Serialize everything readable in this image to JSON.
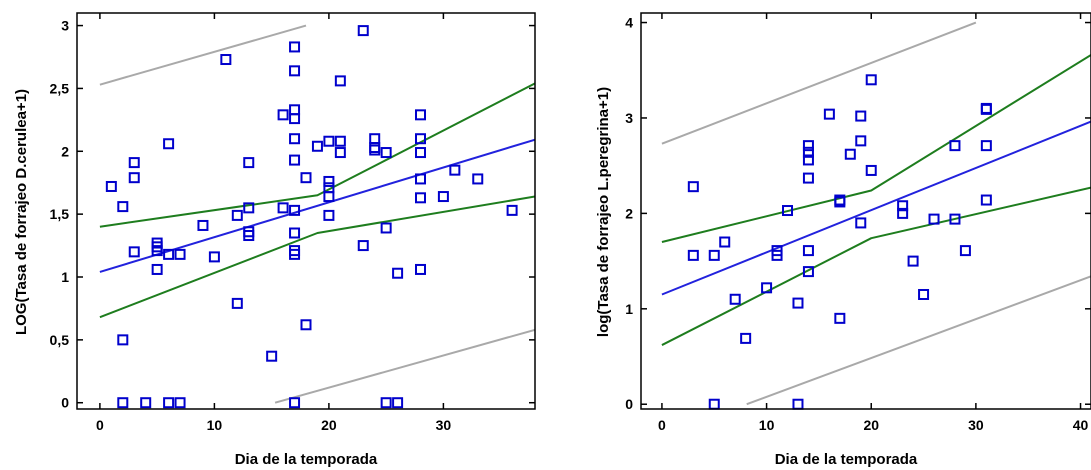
{
  "colors": {
    "points": "#0000cc",
    "fit": "#2222dd",
    "confidence": "#1e7d1e",
    "prediction": "#a9a9a9",
    "axis": "#000000"
  },
  "chart_data": [
    {
      "type": "scatter",
      "xlabel": "Dia de la temporada",
      "ylabel": "LOG(Tasa de forrajeo D.cerulea+1)",
      "xlim": [
        -2,
        38
      ],
      "ylim": [
        -0.05,
        3.1
      ],
      "xticks": [
        0,
        10,
        20,
        30
      ],
      "xtick_labels": [
        "0",
        "10",
        "20",
        "30"
      ],
      "yticks": [
        0,
        0.5,
        1,
        1.5,
        2,
        2.5,
        3
      ],
      "ytick_labels": [
        "0",
        "0,5",
        "1",
        "1,5",
        "2",
        "2,5",
        "3"
      ],
      "grid": false,
      "legend": "none",
      "points": [
        [
          1,
          1.72
        ],
        [
          2,
          1.56
        ],
        [
          2,
          0.5
        ],
        [
          2,
          0.0
        ],
        [
          3,
          1.91
        ],
        [
          3,
          1.79
        ],
        [
          3,
          1.2
        ],
        [
          4,
          0.0
        ],
        [
          5,
          1.27
        ],
        [
          5,
          1.24
        ],
        [
          5,
          1.21
        ],
        [
          5,
          1.06
        ],
        [
          6,
          2.06
        ],
        [
          6,
          1.18
        ],
        [
          6,
          0.0
        ],
        [
          7,
          1.18
        ],
        [
          7,
          0.0
        ],
        [
          9,
          1.41
        ],
        [
          10,
          1.16
        ],
        [
          11,
          2.73
        ],
        [
          12,
          1.49
        ],
        [
          12,
          0.79
        ],
        [
          13,
          1.91
        ],
        [
          13,
          1.55
        ],
        [
          13,
          1.36
        ],
        [
          13,
          1.33
        ],
        [
          15,
          0.37
        ],
        [
          16,
          2.29
        ],
        [
          16,
          1.55
        ],
        [
          17,
          2.83
        ],
        [
          17,
          2.64
        ],
        [
          17,
          2.33
        ],
        [
          17,
          2.26
        ],
        [
          17,
          2.1
        ],
        [
          17,
          1.93
        ],
        [
          17,
          1.53
        ],
        [
          17,
          1.35
        ],
        [
          17,
          1.21
        ],
        [
          17,
          1.18
        ],
        [
          17,
          0.0
        ],
        [
          18,
          1.79
        ],
        [
          18,
          0.62
        ],
        [
          19,
          2.04
        ],
        [
          20,
          2.08
        ],
        [
          20,
          1.76
        ],
        [
          20,
          1.71
        ],
        [
          20,
          1.64
        ],
        [
          20,
          1.49
        ],
        [
          21,
          2.56
        ],
        [
          21,
          2.08
        ],
        [
          21,
          1.99
        ],
        [
          23,
          2.96
        ],
        [
          23,
          1.25
        ],
        [
          24,
          2.1
        ],
        [
          24,
          2.03
        ],
        [
          24,
          2.01
        ],
        [
          25,
          1.99
        ],
        [
          25,
          1.39
        ],
        [
          25,
          0.0
        ],
        [
          26,
          1.03
        ],
        [
          26,
          0.0
        ],
        [
          28,
          2.29
        ],
        [
          28,
          2.1
        ],
        [
          28,
          1.99
        ],
        [
          28,
          1.78
        ],
        [
          28,
          1.63
        ],
        [
          28,
          1.06
        ],
        [
          30,
          1.64
        ],
        [
          31,
          1.85
        ],
        [
          33,
          1.78
        ],
        [
          36,
          1.53
        ]
      ],
      "fit": {
        "intercept": 1.04,
        "slope": 0.0277
      },
      "confidence_band": {
        "lower": [
          [
            0,
            0.68
          ],
          [
            19,
            1.35
          ],
          [
            38,
            1.64
          ]
        ],
        "upper": [
          [
            0,
            1.4
          ],
          [
            19,
            1.65
          ],
          [
            38,
            2.54
          ]
        ]
      },
      "prediction_band": {
        "lower": [
          [
            15.3,
            0.0
          ],
          [
            38,
            0.58
          ]
        ],
        "upper": [
          [
            0,
            2.53
          ],
          [
            18,
            3.0
          ]
        ]
      }
    },
    {
      "type": "scatter",
      "xlabel": "Dia de la temporada",
      "ylabel": "log(Tasa de forrajeo L.peregrina+1)",
      "xlim": [
        -2,
        41
      ],
      "ylim": [
        -0.05,
        4.1
      ],
      "xticks": [
        0,
        10,
        20,
        30,
        40
      ],
      "xtick_labels": [
        "0",
        "10",
        "20",
        "30",
        "40"
      ],
      "yticks": [
        0,
        1,
        2,
        3,
        4
      ],
      "ytick_labels": [
        "0",
        "1",
        "2",
        "3",
        "4"
      ],
      "grid": false,
      "legend": "none",
      "points": [
        [
          3,
          2.28
        ],
        [
          3,
          1.56
        ],
        [
          5,
          1.56
        ],
        [
          5,
          0.0
        ],
        [
          6,
          1.7
        ],
        [
          7,
          1.1
        ],
        [
          8,
          0.69
        ],
        [
          10,
          1.22
        ],
        [
          11,
          1.61
        ],
        [
          11,
          1.56
        ],
        [
          12,
          2.03
        ],
        [
          13,
          1.06
        ],
        [
          13,
          0.0
        ],
        [
          14,
          2.71
        ],
        [
          14,
          2.64
        ],
        [
          14,
          2.56
        ],
        [
          14,
          2.37
        ],
        [
          14,
          1.61
        ],
        [
          14,
          1.39
        ],
        [
          16,
          3.04
        ],
        [
          17,
          2.14
        ],
        [
          17,
          2.12
        ],
        [
          17,
          0.9
        ],
        [
          18,
          2.62
        ],
        [
          19,
          3.02
        ],
        [
          19,
          2.76
        ],
        [
          19,
          1.9
        ],
        [
          20,
          3.4
        ],
        [
          20,
          2.45
        ],
        [
          23,
          2.08
        ],
        [
          23,
          2.0
        ],
        [
          24,
          1.5
        ],
        [
          25,
          1.15
        ],
        [
          26,
          1.94
        ],
        [
          28,
          2.71
        ],
        [
          28,
          1.94
        ],
        [
          29,
          1.61
        ],
        [
          31,
          3.1
        ],
        [
          31,
          3.09
        ],
        [
          31,
          2.71
        ],
        [
          31,
          2.14
        ]
      ],
      "fit": {
        "intercept": 1.15,
        "slope": 0.0442
      },
      "confidence_band": {
        "lower": [
          [
            0,
            0.62
          ],
          [
            20,
            1.74
          ],
          [
            41,
            2.27
          ]
        ],
        "upper": [
          [
            0,
            1.7
          ],
          [
            20,
            2.24
          ],
          [
            41,
            3.66
          ]
        ]
      },
      "prediction_band": {
        "lower": [
          [
            8.1,
            0.0
          ],
          [
            41,
            1.34
          ]
        ],
        "upper": [
          [
            0,
            2.73
          ],
          [
            30,
            4.0
          ]
        ]
      }
    }
  ]
}
